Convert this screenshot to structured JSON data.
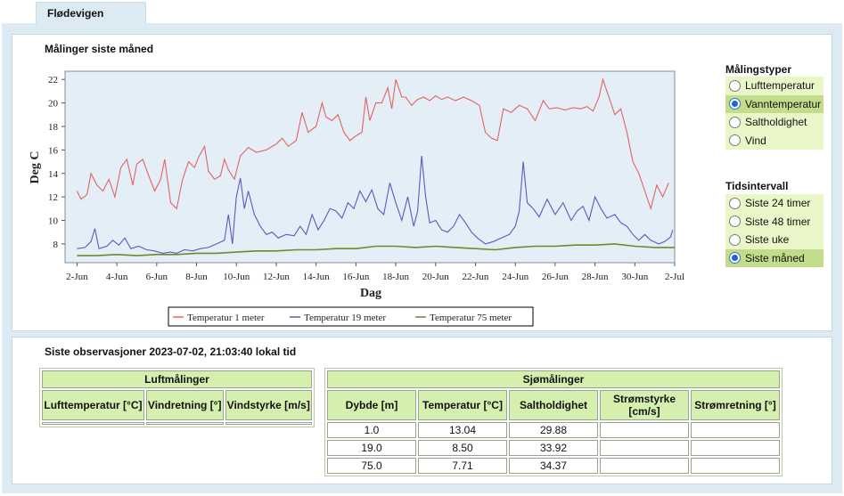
{
  "tab": {
    "label": "Flødevigen"
  },
  "chart_section": {
    "title": "Målinger siste måned"
  },
  "chart_data": {
    "type": "line",
    "xlabel": "Dag",
    "ylabel": "Deg C",
    "x_ticks": [
      "2-Jun",
      "4-Jun",
      "6-Jun",
      "8-Jun",
      "10-Jun",
      "12-Jun",
      "14-Jun",
      "16-Jun",
      "18-Jun",
      "20-Jun",
      "22-Jun",
      "24-Jun",
      "26-Jun",
      "28-Jun",
      "30-Jun",
      "2-Jul"
    ],
    "y_ticks": [
      "8",
      "10",
      "12",
      "14",
      "16",
      "18",
      "20",
      "22"
    ],
    "xlim": [
      1.4,
      32.0
    ],
    "ylim": [
      6.4,
      22.7
    ],
    "grid": false,
    "legend_position": "bottom",
    "series": [
      {
        "name": "Temperatur 1 meter",
        "color": "#e26262",
        "points": [
          [
            2.0,
            12.5
          ],
          [
            2.2,
            11.8
          ],
          [
            2.5,
            12.2
          ],
          [
            2.7,
            14.0
          ],
          [
            3.0,
            13.0
          ],
          [
            3.3,
            12.5
          ],
          [
            3.6,
            13.5
          ],
          [
            3.9,
            12.0
          ],
          [
            4.2,
            14.5
          ],
          [
            4.5,
            15.2
          ],
          [
            4.8,
            13.0
          ],
          [
            5.0,
            14.8
          ],
          [
            5.3,
            15.2
          ],
          [
            5.6,
            13.8
          ],
          [
            5.9,
            12.5
          ],
          [
            6.2,
            13.5
          ],
          [
            6.4,
            15.2
          ],
          [
            6.7,
            11.5
          ],
          [
            7.0,
            11.0
          ],
          [
            7.3,
            13.5
          ],
          [
            7.6,
            15.0
          ],
          [
            7.9,
            14.5
          ],
          [
            8.1,
            15.4
          ],
          [
            8.4,
            16.3
          ],
          [
            8.6,
            14.2
          ],
          [
            8.9,
            13.5
          ],
          [
            9.2,
            13.8
          ],
          [
            9.4,
            15.2
          ],
          [
            9.6,
            14.3
          ],
          [
            9.9,
            13.5
          ],
          [
            10.2,
            15.5
          ],
          [
            10.6,
            16.2
          ],
          [
            11.0,
            15.8
          ],
          [
            11.5,
            16.0
          ],
          [
            12.0,
            16.5
          ],
          [
            12.3,
            17.0
          ],
          [
            12.6,
            16.3
          ],
          [
            13.0,
            16.8
          ],
          [
            13.3,
            19.2
          ],
          [
            13.6,
            17.5
          ],
          [
            14.0,
            18.0
          ],
          [
            14.3,
            20.0
          ],
          [
            14.5,
            18.8
          ],
          [
            14.8,
            18.5
          ],
          [
            15.1,
            19.0
          ],
          [
            15.4,
            17.5
          ],
          [
            15.7,
            16.8
          ],
          [
            16.0,
            17.2
          ],
          [
            16.3,
            17.5
          ],
          [
            16.5,
            20.5
          ],
          [
            16.7,
            18.5
          ],
          [
            17.0,
            20.0
          ],
          [
            17.3,
            20.0
          ],
          [
            17.6,
            21.3
          ],
          [
            17.8,
            19.5
          ],
          [
            18.0,
            22.0
          ],
          [
            18.3,
            20.5
          ],
          [
            18.5,
            20.5
          ],
          [
            18.8,
            19.8
          ],
          [
            19.1,
            20.3
          ],
          [
            19.4,
            20.5
          ],
          [
            19.7,
            20.2
          ],
          [
            20.0,
            20.6
          ],
          [
            20.3,
            20.3
          ],
          [
            20.6,
            20.5
          ],
          [
            21.0,
            20.2
          ],
          [
            21.4,
            20.5
          ],
          [
            21.8,
            20.2
          ],
          [
            22.2,
            19.8
          ],
          [
            22.5,
            17.5
          ],
          [
            22.8,
            17.0
          ],
          [
            23.1,
            16.8
          ],
          [
            23.4,
            19.5
          ],
          [
            23.8,
            19.2
          ],
          [
            24.2,
            19.8
          ],
          [
            24.6,
            19.5
          ],
          [
            25.0,
            18.5
          ],
          [
            25.4,
            20.2
          ],
          [
            25.7,
            19.5
          ],
          [
            26.1,
            19.6
          ],
          [
            26.5,
            19.4
          ],
          [
            26.9,
            19.6
          ],
          [
            27.3,
            19.5
          ],
          [
            27.6,
            19.7
          ],
          [
            27.9,
            19.3
          ],
          [
            28.2,
            20.5
          ],
          [
            28.4,
            22.0
          ],
          [
            28.7,
            20.5
          ],
          [
            29.0,
            19.0
          ],
          [
            29.3,
            19.5
          ],
          [
            29.6,
            17.5
          ],
          [
            29.9,
            15.0
          ],
          [
            30.2,
            14.0
          ],
          [
            30.5,
            12.5
          ],
          [
            30.8,
            11.0
          ],
          [
            31.1,
            13.0
          ],
          [
            31.4,
            12.0
          ],
          [
            31.7,
            13.2
          ]
        ]
      },
      {
        "name": "Temperatur 19 meter",
        "color": "#5a5ac0",
        "points": [
          [
            2.0,
            7.6
          ],
          [
            2.4,
            7.7
          ],
          [
            2.7,
            8.2
          ],
          [
            2.9,
            9.3
          ],
          [
            3.1,
            7.6
          ],
          [
            3.5,
            7.8
          ],
          [
            3.8,
            8.3
          ],
          [
            4.1,
            7.9
          ],
          [
            4.4,
            8.5
          ],
          [
            4.7,
            7.6
          ],
          [
            5.1,
            7.8
          ],
          [
            5.5,
            7.5
          ],
          [
            5.9,
            7.4
          ],
          [
            6.3,
            7.2
          ],
          [
            6.7,
            7.3
          ],
          [
            7.0,
            7.2
          ],
          [
            7.4,
            7.5
          ],
          [
            7.8,
            7.4
          ],
          [
            8.2,
            7.6
          ],
          [
            8.6,
            7.7
          ],
          [
            9.0,
            8.0
          ],
          [
            9.4,
            8.3
          ],
          [
            9.6,
            10.5
          ],
          [
            9.8,
            8.0
          ],
          [
            10.0,
            12.0
          ],
          [
            10.2,
            13.6
          ],
          [
            10.4,
            11.0
          ],
          [
            10.6,
            12.5
          ],
          [
            10.9,
            10.5
          ],
          [
            11.2,
            9.5
          ],
          [
            11.5,
            8.8
          ],
          [
            11.8,
            9.0
          ],
          [
            12.1,
            8.5
          ],
          [
            12.5,
            8.8
          ],
          [
            12.9,
            8.7
          ],
          [
            13.2,
            9.5
          ],
          [
            13.5,
            8.8
          ],
          [
            13.8,
            10.5
          ],
          [
            14.1,
            9.2
          ],
          [
            14.4,
            10.0
          ],
          [
            14.7,
            11.0
          ],
          [
            15.0,
            10.8
          ],
          [
            15.3,
            10.2
          ],
          [
            15.6,
            11.5
          ],
          [
            15.9,
            11.0
          ],
          [
            16.2,
            12.5
          ],
          [
            16.5,
            11.6
          ],
          [
            16.8,
            12.6
          ],
          [
            17.1,
            11.0
          ],
          [
            17.4,
            10.5
          ],
          [
            17.7,
            13.2
          ],
          [
            18.0,
            11.5
          ],
          [
            18.3,
            10.0
          ],
          [
            18.6,
            12.0
          ],
          [
            18.9,
            9.5
          ],
          [
            19.1,
            10.8
          ],
          [
            19.3,
            15.5
          ],
          [
            19.5,
            12.0
          ],
          [
            19.7,
            9.8
          ],
          [
            20.0,
            10.0
          ],
          [
            20.3,
            9.2
          ],
          [
            20.6,
            9.0
          ],
          [
            20.9,
            9.5
          ],
          [
            21.2,
            10.5
          ],
          [
            21.5,
            9.8
          ],
          [
            21.8,
            9.0
          ],
          [
            22.1,
            8.5
          ],
          [
            22.5,
            8.0
          ],
          [
            22.9,
            8.2
          ],
          [
            23.3,
            8.5
          ],
          [
            23.7,
            8.8
          ],
          [
            24.0,
            9.5
          ],
          [
            24.2,
            10.8
          ],
          [
            24.4,
            15.0
          ],
          [
            24.6,
            11.5
          ],
          [
            24.9,
            11.0
          ],
          [
            25.2,
            10.3
          ],
          [
            25.6,
            11.8
          ],
          [
            26.0,
            10.5
          ],
          [
            26.4,
            11.5
          ],
          [
            26.8,
            10.0
          ],
          [
            27.1,
            10.8
          ],
          [
            27.4,
            11.2
          ],
          [
            27.7,
            10.0
          ],
          [
            28.0,
            12.0
          ],
          [
            28.3,
            11.0
          ],
          [
            28.6,
            10.2
          ],
          [
            29.0,
            10.5
          ],
          [
            29.3,
            9.8
          ],
          [
            29.6,
            9.5
          ],
          [
            29.9,
            8.8
          ],
          [
            30.2,
            8.3
          ],
          [
            30.5,
            8.8
          ],
          [
            30.8,
            8.3
          ],
          [
            31.2,
            8.0
          ],
          [
            31.5,
            8.2
          ],
          [
            31.8,
            8.6
          ],
          [
            31.9,
            9.2
          ]
        ]
      },
      {
        "name": "Temperatur 75 meter",
        "color": "#6e8a2a",
        "points": [
          [
            2.0,
            7.0
          ],
          [
            3.0,
            7.0
          ],
          [
            4.0,
            7.1
          ],
          [
            5.0,
            7.0
          ],
          [
            6.0,
            7.1
          ],
          [
            7.0,
            7.1
          ],
          [
            8.0,
            7.2
          ],
          [
            9.0,
            7.2
          ],
          [
            10.0,
            7.3
          ],
          [
            11.0,
            7.4
          ],
          [
            12.0,
            7.4
          ],
          [
            13.0,
            7.5
          ],
          [
            14.0,
            7.5
          ],
          [
            15.0,
            7.6
          ],
          [
            16.0,
            7.6
          ],
          [
            17.0,
            7.8
          ],
          [
            18.0,
            7.8
          ],
          [
            19.0,
            7.7
          ],
          [
            20.0,
            7.8
          ],
          [
            21.0,
            7.7
          ],
          [
            22.0,
            7.6
          ],
          [
            23.0,
            7.5
          ],
          [
            24.0,
            7.7
          ],
          [
            25.0,
            7.8
          ],
          [
            26.0,
            7.8
          ],
          [
            27.0,
            7.9
          ],
          [
            28.0,
            7.9
          ],
          [
            29.0,
            8.0
          ],
          [
            30.0,
            7.8
          ],
          [
            31.0,
            7.7
          ],
          [
            32.0,
            7.7
          ]
        ]
      }
    ]
  },
  "measurement_types": {
    "title": "Målingstyper",
    "options": [
      {
        "label": "Lufttemperatur",
        "selected": false
      },
      {
        "label": "Vanntemperatur",
        "selected": true
      },
      {
        "label": "Saltholdighet",
        "selected": false
      },
      {
        "label": "Vind",
        "selected": false
      }
    ]
  },
  "time_interval": {
    "title": "Tidsintervall",
    "options": [
      {
        "label": "Siste 24 timer",
        "selected": false
      },
      {
        "label": "Siste 48 timer",
        "selected": false
      },
      {
        "label": "Siste uke",
        "selected": false
      },
      {
        "label": "Siste måned",
        "selected": true
      }
    ]
  },
  "observations": {
    "title": "Siste observasjoner 2023-07-02, 21:03:40 lokal tid",
    "air": {
      "title": "Luftmålinger",
      "columns": [
        "Lufttemperatur [°C]",
        "Vindretning [°]",
        "Vindstyrke [m/s]"
      ]
    },
    "sea": {
      "title": "Sjømålinger",
      "columns": [
        "Dybde [m]",
        "Temperatur [°C]",
        "Saltholdighet",
        "Strømstyrke [cm/s]",
        "Strømretning [°]"
      ],
      "rows": [
        [
          "1.0",
          "13.04",
          "29.88",
          "",
          ""
        ],
        [
          "19.0",
          "8.50",
          "33.92",
          "",
          ""
        ],
        [
          "75.0",
          "7.71",
          "34.37",
          "",
          ""
        ]
      ]
    }
  }
}
